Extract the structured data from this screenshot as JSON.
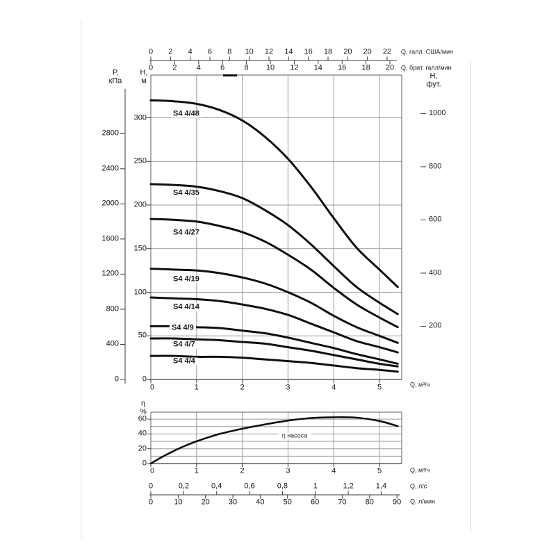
{
  "page": {
    "background": "#ffffff",
    "curve_color": "#101010",
    "grid_color": "#9a9a9a",
    "axis_color": "#3a3a3a",
    "text_color": "#161616"
  },
  "axis_headers": {
    "pressure": [
      "Р,",
      "кПа"
    ],
    "head_m": [
      "Н,",
      "м"
    ],
    "head_ft": [
      "Н,",
      "фут."
    ],
    "eta": [
      "η",
      "%"
    ]
  },
  "axis_unit_labels": {
    "us_gpm": "Q, галл. США/мин",
    "imp_gpm": "Q, брит. галл/мин",
    "main_x": "Q, м³/ч",
    "eta_x": "Q, м³/ч",
    "lps": "Q, л/с",
    "lpm": "Q, л/мин"
  },
  "chart_data": [
    {
      "type": "line",
      "id": "head-curves",
      "xlabel": "Q, м³/ч",
      "ylabel_left_primary": "Р, кПа",
      "ylabel_left_secondary": "Н, м",
      "ylabel_right": "Н, фут.",
      "xlim": [
        0,
        5.5
      ],
      "ylim_m": [
        0,
        350
      ],
      "grid": true,
      "x_tick_labels": [
        "0",
        "1",
        "2",
        "3",
        "4",
        "5"
      ],
      "x_ticks": [
        0,
        1,
        2,
        3,
        4,
        5
      ],
      "y_ticks_m": [
        0,
        50,
        100,
        150,
        200,
        250,
        300
      ],
      "y_tick_labels_m": [
        "0",
        "50",
        "100",
        "150",
        "200",
        "250",
        "300"
      ],
      "y_ticks_kpa": [
        0,
        400,
        800,
        1200,
        1600,
        2000,
        2400,
        2800
      ],
      "y_tick_labels_kpa": [
        "0",
        "400",
        "800",
        "1200",
        "1600",
        "2000",
        "2400",
        "2800"
      ],
      "y_ticks_ft": [
        200,
        400,
        600,
        800,
        1000
      ],
      "y_tick_labels_ft": [
        "200",
        "400",
        "600",
        "800",
        "1000"
      ],
      "top_scale_us": {
        "label": "Q, галл. США/мин",
        "ticks": [
          "0",
          "2",
          "4",
          "6",
          "8",
          "10",
          "12",
          "14",
          "16",
          "18",
          "20",
          "20",
          "22"
        ]
      },
      "top_scale_imp": {
        "label": "Q, брит. галл/мин",
        "ticks": [
          "0",
          "2",
          "4",
          "6",
          "8",
          "10",
          "12",
          "14",
          "16",
          "18",
          "20"
        ]
      },
      "x": [
        0,
        0.5,
        1,
        1.5,
        2,
        2.5,
        3,
        3.5,
        4,
        4.5,
        5,
        5.4
      ],
      "series": [
        {
          "name": "S4 4/48",
          "values": [
            320,
            319,
            316,
            309,
            297,
            278,
            253,
            221,
            185,
            151,
            126,
            106
          ]
        },
        {
          "name": "S4 4/35",
          "values": [
            224,
            223,
            221,
            216,
            208,
            194,
            177,
            155,
            130,
            106,
            88,
            75
          ]
        },
        {
          "name": "S4 4/27",
          "values": [
            184,
            183,
            181,
            176,
            169,
            158,
            143,
            126,
            105,
            86,
            71,
            60
          ]
        },
        {
          "name": "S4 4/19",
          "values": [
            127,
            126,
            125,
            122,
            117,
            110,
            100,
            88,
            73,
            60,
            50,
            42
          ]
        },
        {
          "name": "S4 4/14",
          "values": [
            94,
            93,
            92,
            90,
            86,
            81,
            74,
            64,
            54,
            44,
            37,
            31
          ]
        },
        {
          "name": "S4 4/9",
          "values": [
            61,
            61,
            60,
            59,
            56,
            53,
            48,
            42,
            36,
            29,
            23,
            18
          ]
        },
        {
          "name": "S4 4/7",
          "values": [
            47,
            47,
            46,
            45,
            43,
            41,
            37,
            33,
            28,
            23,
            18,
            15
          ]
        },
        {
          "name": "S4 4/4",
          "values": [
            27,
            27,
            26,
            26,
            25,
            23,
            21,
            19,
            16,
            13,
            11,
            9
          ]
        }
      ]
    },
    {
      "type": "line",
      "id": "efficiency",
      "curve_label": "η насоса",
      "ylabel": "η %",
      "xlabel": "Q, м³/ч",
      "ylim": [
        0,
        70
      ],
      "grid": true,
      "y_ticks": [
        0,
        20,
        40,
        60
      ],
      "y_tick_labels": [
        "0",
        "20",
        "40",
        "60"
      ],
      "x_ticks": [
        0,
        1,
        2,
        3,
        4,
        5
      ],
      "x_tick_labels": [
        "0",
        "1",
        "2",
        "3",
        "4",
        "5"
      ],
      "x": [
        0,
        0.25,
        0.5,
        0.75,
        1,
        1.5,
        2,
        2.5,
        3,
        3.5,
        4,
        4.5,
        5,
        5.4
      ],
      "values": [
        0,
        9,
        17,
        24,
        30,
        40,
        47,
        53,
        58,
        61.5,
        62.5,
        62,
        57.5,
        50.5
      ],
      "bottom_scale_lps": {
        "label": "Q, л/с",
        "ticks": [
          "0",
          "0,2",
          "0,4",
          "0,6",
          "0,8",
          "1",
          "1,2",
          "1,4"
        ]
      },
      "bottom_scale_lpm": {
        "label": "Q, л/мин",
        "ticks": [
          "0",
          "10",
          "20",
          "30",
          "40",
          "50",
          "60",
          "70",
          "80",
          "90"
        ]
      }
    }
  ]
}
